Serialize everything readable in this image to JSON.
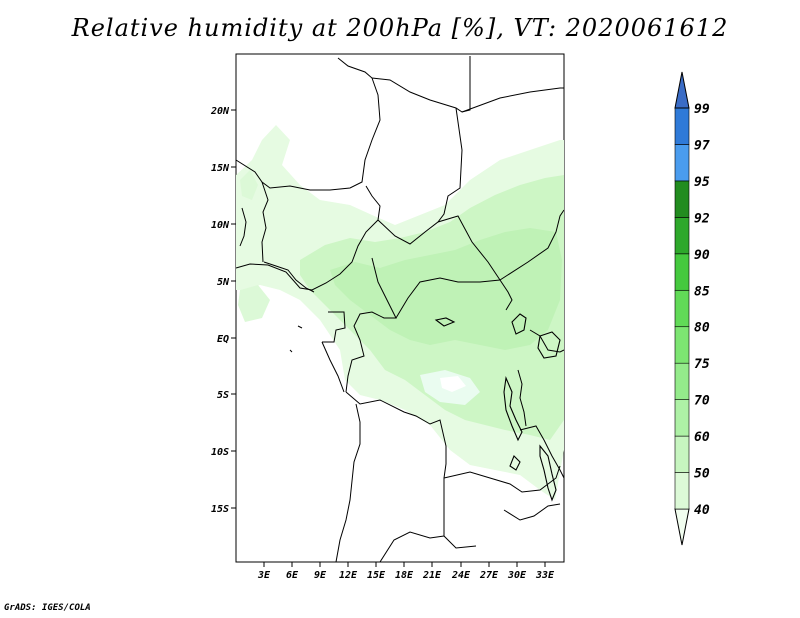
{
  "title": "Relative humidity at 200hPa [%], VT: 2020061612",
  "credit": "GrADS: IGES/COLA",
  "map": {
    "lat_range": [
      -20,
      24
    ],
    "lon_range": [
      0,
      34.5
    ],
    "lat_ticks": [
      "20N",
      "15N",
      "10N",
      "5N",
      "EQ",
      "5S",
      "10S",
      "15S"
    ],
    "lon_ticks": [
      "3E",
      "6E",
      "9E",
      "12E",
      "15E",
      "18E",
      "21E",
      "24E",
      "27E",
      "30E",
      "33E"
    ]
  },
  "colorbar": {
    "levels": [
      "40",
      "50",
      "60",
      "70",
      "75",
      "80",
      "85",
      "90",
      "92",
      "95",
      "97",
      "99"
    ],
    "colors": [
      "#f1fdef",
      "#dcf9d7",
      "#c7f5c0",
      "#aef1a6",
      "#94eb8b",
      "#7de572",
      "#61da57",
      "#45c93e",
      "#2ea82b",
      "#228c1f",
      "#4a9cee",
      "#2f7ad8",
      "#3a6cc6"
    ]
  }
}
